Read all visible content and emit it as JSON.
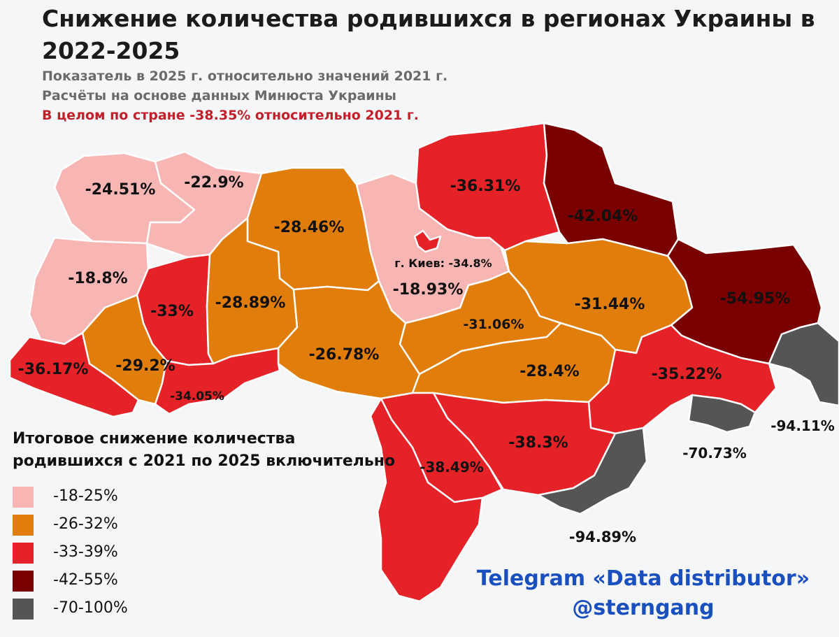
{
  "title": "Снижение количества родившихся в регионах Украины в 2022-2025",
  "subtitle_1": "Показатель в 2025 г. относительно значений 2021 г.",
  "subtitle_2": "Расчёты на основе данных Минюста Украины",
  "subtitle_3": "В целом по стране -38.35% относительно 2021 г.",
  "colors": {
    "light_pink": "#f7b5b3",
    "orange": "#e07d0b",
    "red": "#e52228",
    "dark_red": "#7a0000",
    "gray": "#555555",
    "border": "#ffffff",
    "credit": "#1a4fbf",
    "highlight": "#c0202a"
  },
  "regions": [
    {
      "id": "volyn",
      "value": "-24.51%",
      "category": "light_pink"
    },
    {
      "id": "rivne",
      "value": "-22.9%",
      "category": "light_pink"
    },
    {
      "id": "zhytomyr",
      "value": "-28.46%",
      "category": "orange"
    },
    {
      "id": "kyiv-oblast",
      "value": "-18.93%",
      "category": "light_pink"
    },
    {
      "id": "kyiv-city",
      "value": "г. Киев: -34.8%",
      "category": "red"
    },
    {
      "id": "chernihiv",
      "value": "-36.31%",
      "category": "red"
    },
    {
      "id": "sumy",
      "value": "-42.04%",
      "category": "dark_red"
    },
    {
      "id": "lviv",
      "value": "-18.8%",
      "category": "light_pink"
    },
    {
      "id": "ternopil",
      "value": "-33%",
      "category": "red"
    },
    {
      "id": "khmelnytskyi",
      "value": "-28.89%",
      "category": "orange"
    },
    {
      "id": "vinnytsia",
      "value": "-26.78%",
      "category": "orange"
    },
    {
      "id": "cherkasy",
      "value": "-31.06%",
      "category": "orange"
    },
    {
      "id": "poltava",
      "value": "-31.44%",
      "category": "orange"
    },
    {
      "id": "kharkiv",
      "value": "-54.95%",
      "category": "dark_red"
    },
    {
      "id": "zakarpattia",
      "value": "-36.17%",
      "category": "red"
    },
    {
      "id": "ivano-frankivsk",
      "value": "-29.2%",
      "category": "orange"
    },
    {
      "id": "chernivtsi",
      "value": "-34.05%",
      "category": "red"
    },
    {
      "id": "kirovohrad",
      "value": "-28.4%",
      "category": "orange"
    },
    {
      "id": "dnipropetrovsk",
      "value": "-35.22%",
      "category": "red"
    },
    {
      "id": "luhansk",
      "value": "-94.11%",
      "category": "gray"
    },
    {
      "id": "donetsk",
      "value": "-70.73%",
      "category": "gray"
    },
    {
      "id": "zaporizhzhia",
      "value": "-38.3%",
      "category": "red"
    },
    {
      "id": "mykolaiv",
      "value": "-38.49%",
      "category": "red"
    },
    {
      "id": "odesa",
      "value": "",
      "category": "red"
    },
    {
      "id": "kherson-occupied",
      "value": "-94.89%",
      "category": "gray"
    }
  ],
  "legend": {
    "title": "Итоговое снижение количества родившихся с 2021 по 2025 включительно",
    "items": [
      {
        "label": "-18-25%",
        "category": "light_pink"
      },
      {
        "label": "-26-32%",
        "category": "orange"
      },
      {
        "label": "-33-39%",
        "category": "red"
      },
      {
        "label": "-42-55%",
        "category": "dark_red"
      },
      {
        "label": "-70-100%",
        "category": "gray"
      }
    ]
  },
  "credit": {
    "line1": "Telegram «Data distributor»",
    "line2": "@sterngang"
  }
}
